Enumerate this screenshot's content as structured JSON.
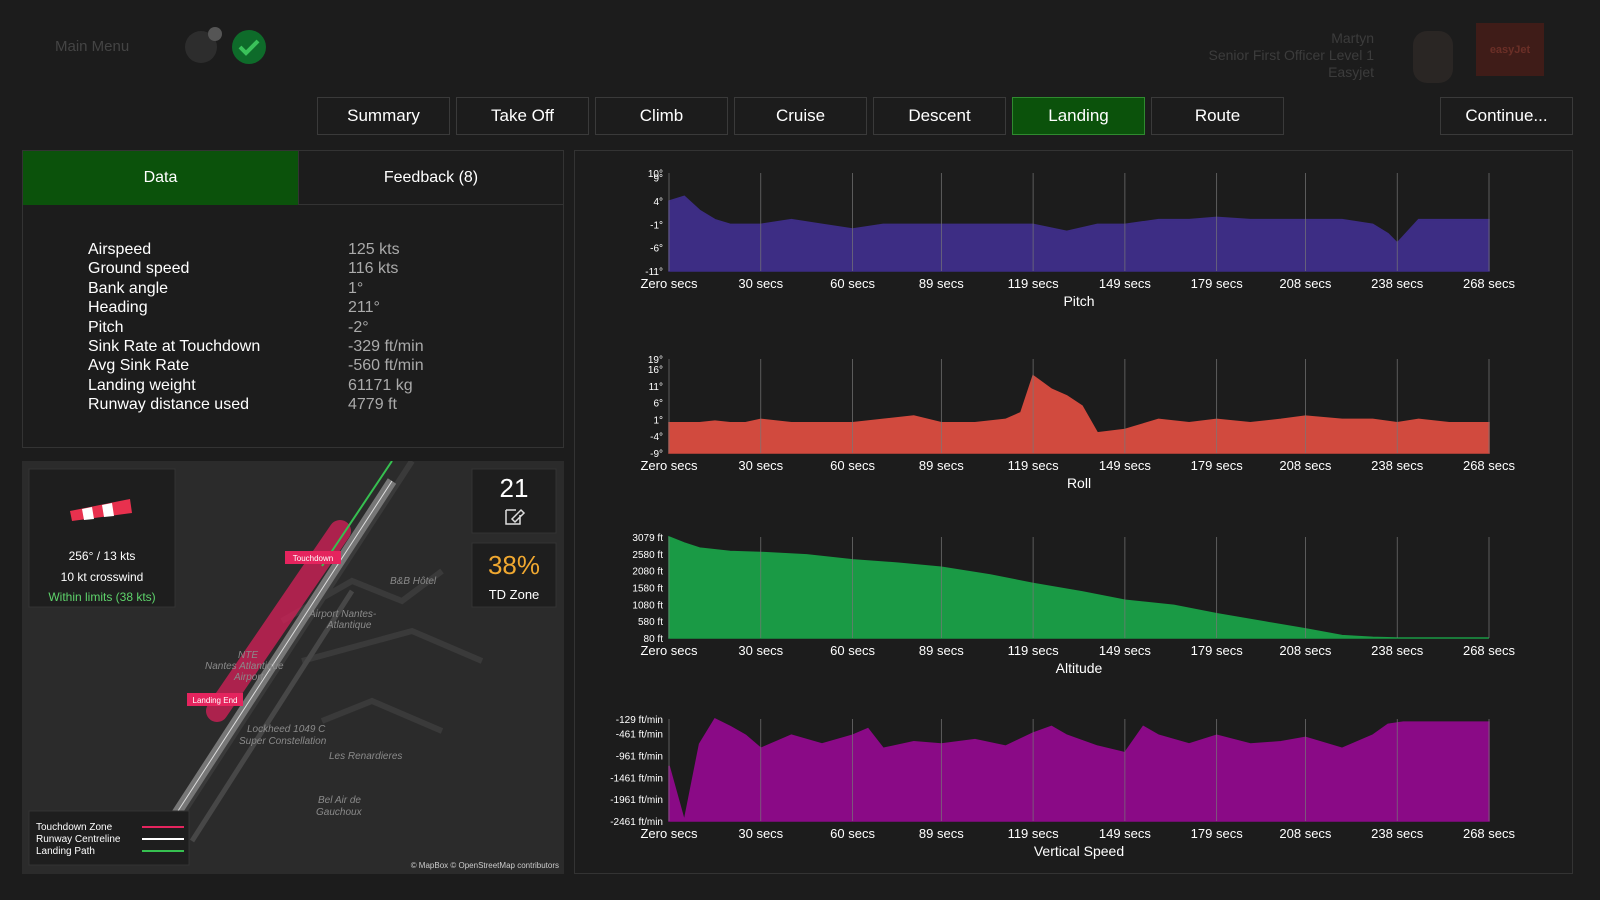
{
  "header": {
    "menu": "Main Menu",
    "user": {
      "name": "Martyn",
      "rank": "Senior First Officer Level 1",
      "airline": "Easyjet"
    },
    "logo": "easyJet"
  },
  "tabs": {
    "items": [
      "Summary",
      "Take Off",
      "Climb",
      "Cruise",
      "Descent",
      "Landing",
      "Route"
    ],
    "active": 5,
    "continue": "Continue..."
  },
  "panel": {
    "tabs": [
      "Data",
      "Feedback (8)"
    ],
    "rows": [
      {
        "label": "Airspeed",
        "value": "125 kts"
      },
      {
        "label": "Ground speed",
        "value": "116 kts"
      },
      {
        "label": "Bank angle",
        "value": "1°"
      },
      {
        "label": "Heading",
        "value": "211°"
      },
      {
        "label": "Pitch",
        "value": "-2°"
      },
      {
        "label": "Sink Rate at Touchdown",
        "value": "-329 ft/min"
      },
      {
        "label": "Avg Sink Rate",
        "value": "-560 ft/min"
      },
      {
        "label": "Landing weight",
        "value": "61171 kg"
      },
      {
        "label": "Runway distance used",
        "value": "4779 ft"
      }
    ]
  },
  "map": {
    "wind": "256° / 13 kts",
    "crosswind": "10 kt crosswind",
    "limits": "Within limits (38 kts)",
    "score": "21",
    "zone_pct": "38%",
    "zone_label": "TD Zone",
    "markers": [
      "Touchdown",
      "Landing End"
    ],
    "places": [
      "B&B Hôtel",
      "Airport Nantes-",
      "Atlantique",
      "NTE",
      "Nantes Atlantique",
      "Airport",
      "Lockheed 1049 C",
      "Super Constellation",
      "Les Renardieres",
      "Bel Air de",
      "Gauchoux"
    ],
    "legend": [
      "Touchdown Zone",
      "Runway Centreline",
      "Landing Path"
    ],
    "credit": "© MapBox © OpenStreetMap contributors"
  },
  "chart_data": [
    {
      "type": "area",
      "title": "Pitch",
      "color": "#3d2d84",
      "x": [
        0,
        5,
        10,
        15,
        20,
        30,
        40,
        50,
        60,
        70,
        80,
        89,
        100,
        110,
        119,
        130,
        140,
        149,
        160,
        170,
        179,
        190,
        200,
        208,
        220,
        230,
        235,
        238,
        245,
        255,
        268
      ],
      "values": [
        4,
        5,
        2,
        0,
        -1,
        -1,
        0,
        -1,
        -2,
        -1,
        -1,
        -1,
        -1,
        -1,
        -1,
        -2.5,
        -1,
        -1,
        0,
        0,
        0.5,
        0,
        0,
        0,
        0,
        -1,
        -3,
        -5,
        0,
        0,
        0
      ],
      "xlim": [
        0,
        268
      ],
      "ylim": [
        -11,
        10
      ],
      "xticks": [
        {
          "value": 0,
          "label": "Zero secs"
        },
        {
          "value": 30,
          "label": "30 secs"
        },
        {
          "value": 60,
          "label": "60 secs"
        },
        {
          "value": 89,
          "label": "89 secs"
        },
        {
          "value": 119,
          "label": "119 secs"
        },
        {
          "value": 149,
          "label": "149 secs"
        },
        {
          "value": 179,
          "label": "179 secs"
        },
        {
          "value": 208,
          "label": "208 secs"
        },
        {
          "value": 238,
          "label": "238 secs"
        },
        {
          "value": 268,
          "label": "268 secs"
        }
      ],
      "yticks": [
        {
          "value": 10,
          "label": "10°"
        },
        {
          "value": 9,
          "label": "9°"
        },
        {
          "value": 4,
          "label": "4°"
        },
        {
          "value": -1,
          "label": "-1°"
        },
        {
          "value": -6,
          "label": "-6°"
        },
        {
          "value": -11,
          "label": "-11°"
        }
      ]
    },
    {
      "type": "area",
      "title": "Roll",
      "color": "#d14a3e",
      "x": [
        0,
        5,
        10,
        15,
        20,
        25,
        30,
        40,
        50,
        60,
        70,
        80,
        89,
        100,
        110,
        115,
        119,
        125,
        130,
        135,
        140,
        149,
        160,
        170,
        179,
        190,
        200,
        208,
        220,
        230,
        238,
        245,
        255,
        268
      ],
      "values": [
        0,
        0,
        0,
        0.5,
        0,
        0,
        1,
        0,
        0,
        0,
        1,
        2,
        0,
        0,
        1,
        3,
        14,
        10,
        8,
        5,
        -3,
        -2,
        1,
        0,
        1,
        0,
        1,
        2,
        1,
        1,
        0,
        1,
        0,
        0
      ],
      "xlim": [
        0,
        268
      ],
      "ylim": [
        -9,
        19
      ],
      "xticks": [
        {
          "value": 0,
          "label": "Zero secs"
        },
        {
          "value": 30,
          "label": "30 secs"
        },
        {
          "value": 60,
          "label": "60 secs"
        },
        {
          "value": 89,
          "label": "89 secs"
        },
        {
          "value": 119,
          "label": "119 secs"
        },
        {
          "value": 149,
          "label": "149 secs"
        },
        {
          "value": 179,
          "label": "179 secs"
        },
        {
          "value": 208,
          "label": "208 secs"
        },
        {
          "value": 238,
          "label": "238 secs"
        },
        {
          "value": 268,
          "label": "268 secs"
        }
      ],
      "yticks": [
        {
          "value": 19,
          "label": "19°"
        },
        {
          "value": 16,
          "label": "16°"
        },
        {
          "value": 11,
          "label": "11°"
        },
        {
          "value": 6,
          "label": "6°"
        },
        {
          "value": 1,
          "label": "1°"
        },
        {
          "value": -4,
          "label": "-4°"
        },
        {
          "value": -9,
          "label": "-9°"
        }
      ]
    },
    {
      "type": "area",
      "title": "Altitude",
      "color": "#1a9a45",
      "x": [
        0,
        5,
        10,
        20,
        30,
        45,
        60,
        75,
        89,
        105,
        119,
        135,
        149,
        165,
        179,
        195,
        208,
        220,
        230,
        238,
        250,
        268
      ],
      "values": [
        3079,
        2900,
        2750,
        2650,
        2620,
        2550,
        2400,
        2300,
        2180,
        1950,
        1700,
        1450,
        1200,
        1050,
        800,
        550,
        350,
        150,
        100,
        80,
        80,
        80
      ],
      "xlim": [
        0,
        268
      ],
      "ylim": [
        80,
        3079
      ],
      "xticks": [
        {
          "value": 0,
          "label": "Zero secs"
        },
        {
          "value": 30,
          "label": "30 secs"
        },
        {
          "value": 60,
          "label": "60 secs"
        },
        {
          "value": 89,
          "label": "89 secs"
        },
        {
          "value": 119,
          "label": "119 secs"
        },
        {
          "value": 149,
          "label": "149 secs"
        },
        {
          "value": 179,
          "label": "179 secs"
        },
        {
          "value": 208,
          "label": "208 secs"
        },
        {
          "value": 238,
          "label": "238 secs"
        },
        {
          "value": 268,
          "label": "268 secs"
        }
      ],
      "yticks": [
        {
          "value": 3079,
          "label": "3079 ft"
        },
        {
          "value": 2580,
          "label": "2580 ft"
        },
        {
          "value": 2080,
          "label": "2080 ft"
        },
        {
          "value": 1580,
          "label": "1580 ft"
        },
        {
          "value": 1080,
          "label": "1080 ft"
        },
        {
          "value": 580,
          "label": "580 ft"
        },
        {
          "value": 80,
          "label": "80 ft"
        }
      ]
    },
    {
      "type": "area",
      "title": "Vertical Speed",
      "color": "#8a0a86",
      "x": [
        0,
        5,
        10,
        15,
        20,
        25,
        30,
        40,
        50,
        60,
        65,
        70,
        80,
        89,
        100,
        110,
        119,
        125,
        130,
        140,
        149,
        155,
        160,
        170,
        179,
        190,
        200,
        208,
        220,
        230,
        235,
        240,
        268
      ],
      "values": [
        -1200,
        -2461,
        -700,
        -129,
        -300,
        -500,
        -800,
        -500,
        -700,
        -500,
        -350,
        -800,
        -650,
        -700,
        -600,
        -750,
        -450,
        -300,
        -500,
        -750,
        -900,
        -300,
        -500,
        -700,
        -500,
        -700,
        -650,
        -550,
        -800,
        -500,
        -250,
        -200,
        -200
      ],
      "xlim": [
        0,
        268
      ],
      "ylim": [
        -2461,
        -129
      ],
      "xticks": [
        {
          "value": 0,
          "label": "Zero secs"
        },
        {
          "value": 30,
          "label": "30 secs"
        },
        {
          "value": 60,
          "label": "60 secs"
        },
        {
          "value": 89,
          "label": "89 secs"
        },
        {
          "value": 119,
          "label": "119 secs"
        },
        {
          "value": 149,
          "label": "149 secs"
        },
        {
          "value": 179,
          "label": "179 secs"
        },
        {
          "value": 208,
          "label": "208 secs"
        },
        {
          "value": 238,
          "label": "238 secs"
        },
        {
          "value": 268,
          "label": "268 secs"
        }
      ],
      "yticks": [
        {
          "value": -129,
          "label": "-129 ft/min"
        },
        {
          "value": -461,
          "label": "-461 ft/min"
        },
        {
          "value": -961,
          "label": "-961 ft/min"
        },
        {
          "value": -1461,
          "label": "-1461 ft/min"
        },
        {
          "value": -1961,
          "label": "-1961 ft/min"
        },
        {
          "value": -2461,
          "label": "-2461 ft/min"
        }
      ]
    }
  ]
}
